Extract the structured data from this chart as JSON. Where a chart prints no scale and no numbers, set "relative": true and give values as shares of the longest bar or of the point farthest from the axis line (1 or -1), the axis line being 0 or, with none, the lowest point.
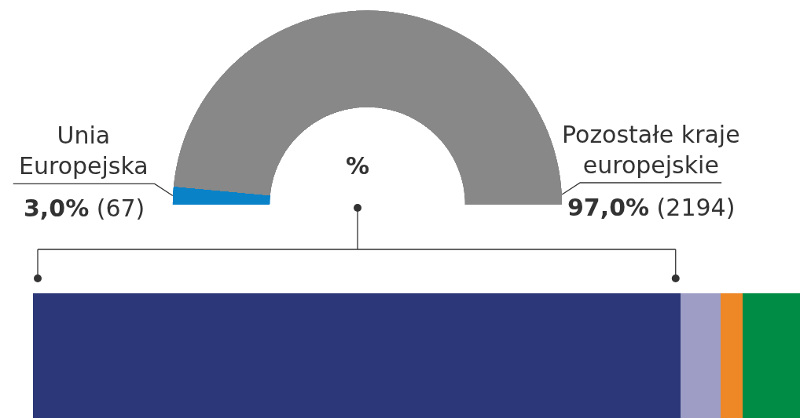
{
  "chart_data": [
    {
      "type": "donut",
      "categories": [
        "Unia Europejska",
        "Pozostałe kraje europejskie"
      ],
      "values": [
        67,
        2194
      ],
      "colors": [
        "#0a82c8",
        "#888888"
      ],
      "value_labels": [
        "3,0% (67)",
        "97,0% (2194)"
      ],
      "annotations": [
        "%"
      ]
    },
    {
      "type": "bar",
      "orientation": "horizontal",
      "stacked": true,
      "relative": true,
      "categories": [
        null
      ],
      "series": [
        {
          "color": "#2b3778",
          "values": [
            0.844
          ]
        },
        {
          "color": "#9d9dc5",
          "values": [
            0.052
          ]
        },
        {
          "color": "#ee8826",
          "values": [
            0.029
          ]
        },
        {
          "color": "#008c44",
          "values": [
            0.075
          ]
        }
      ]
    }
  ]
}
